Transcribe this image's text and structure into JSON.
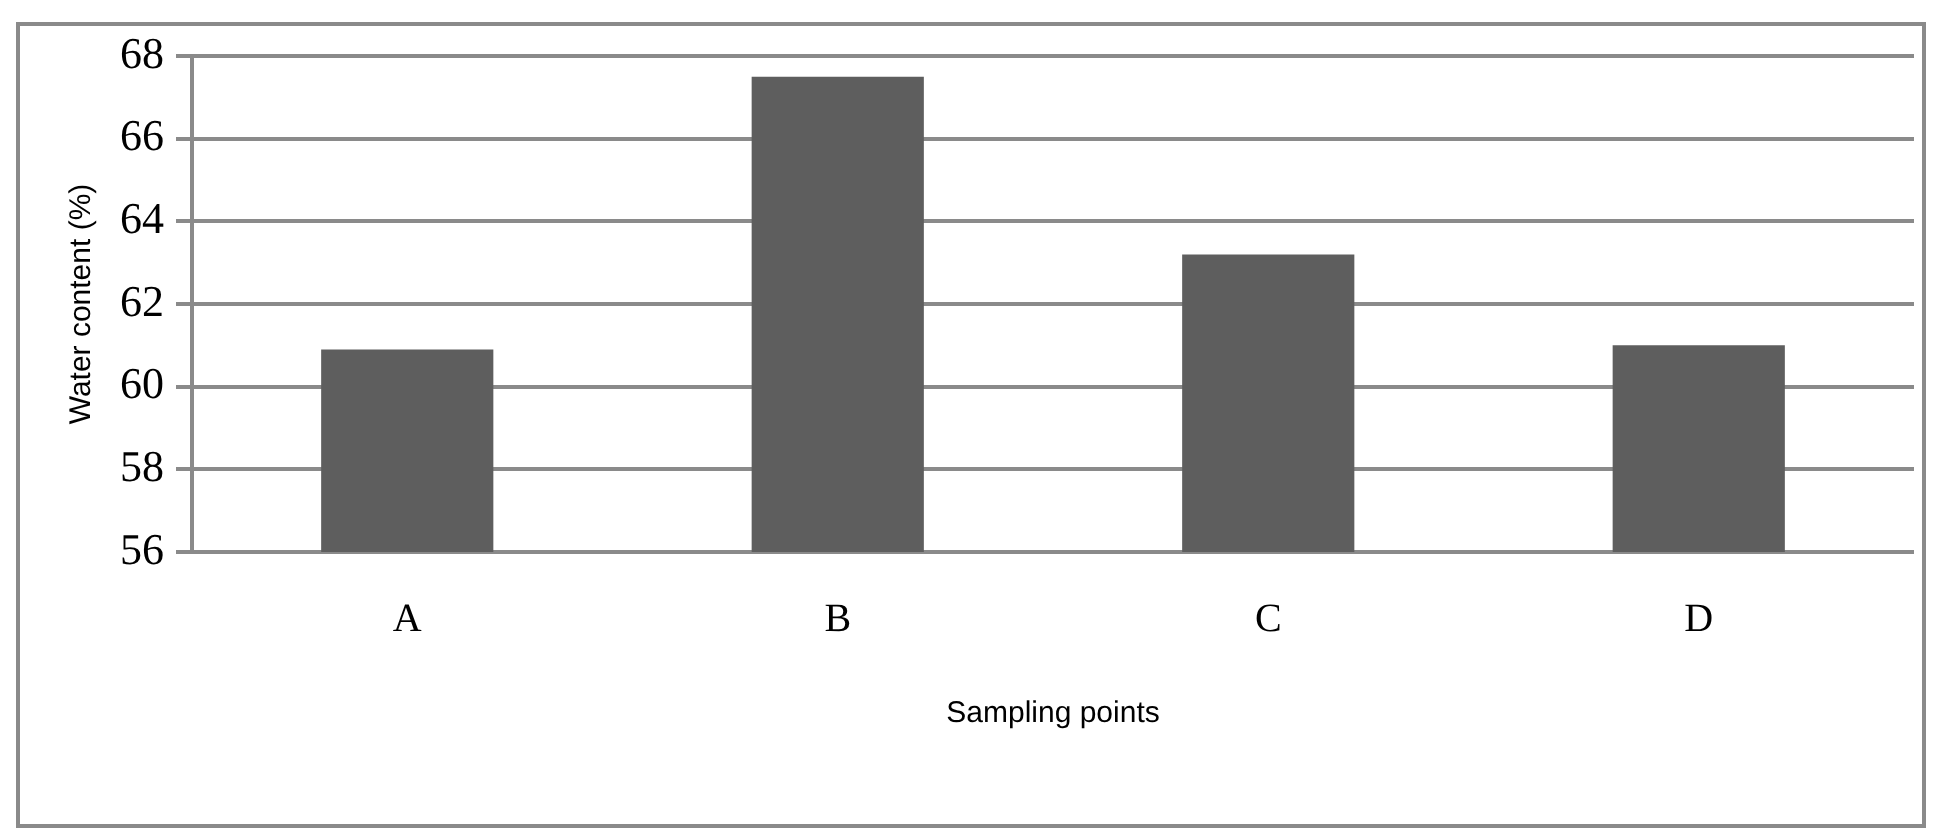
{
  "chart_data": {
    "type": "bar",
    "xlabel": "Sampling points",
    "ylabel": "Water content (%)",
    "categories": [
      "A",
      "B",
      "C",
      "D"
    ],
    "values": [
      60.9,
      67.5,
      63.2,
      61.0
    ],
    "color": "#5e5e5e",
    "ylim": [
      56,
      68
    ],
    "yticks": [
      56,
      58,
      60,
      62,
      64,
      66,
      68
    ],
    "grid": "y"
  }
}
